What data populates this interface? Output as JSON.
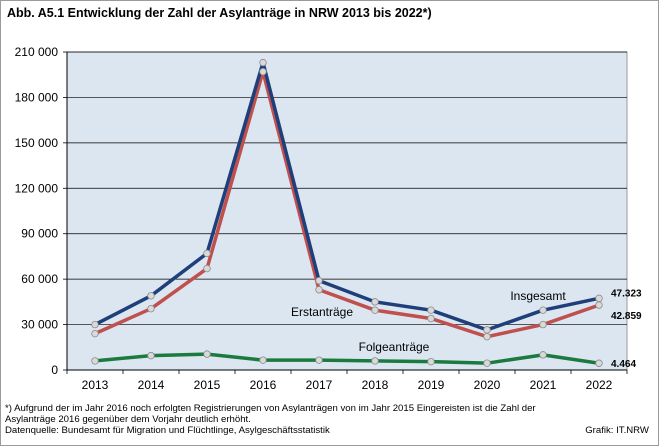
{
  "title": "Abb. A5.1  Entwicklung der Zahl der Asylanträge in NRW 2013 bis 2022*)",
  "footnotes": {
    "line1": "*) Aufgrund der im Jahr 2016 noch erfolgten Registrierungen  von Asylanträgen von im Jahr 2015 Eingereisten  ist die Zahl der",
    "line2": "Asylanträge 2016 gegenüber  dem Vorjahr deutlich erhöht.",
    "source": "Datenquelle:  Bundesamt  für Migration  und Flüchtlinge,  Asylgeschäftsstatistik",
    "credit": "Grafik:  IT.NRW"
  },
  "colors": {
    "insgesamt": "#1f3f7a",
    "erstantraege": "#c0504d",
    "folgeantraege": "#1b7a3e",
    "plot_background": "#dce6f1",
    "marker_fill": "#d9d9d9"
  },
  "chart_data": {
    "type": "line",
    "x": [
      "2013",
      "2014",
      "2015",
      "2016",
      "2017",
      "2018",
      "2019",
      "2020",
      "2021",
      "2022"
    ],
    "ylim": [
      0,
      210000
    ],
    "yticks": [
      0,
      30000,
      60000,
      90000,
      120000,
      150000,
      180000,
      210000
    ],
    "ytick_labels": [
      "0",
      "30 000",
      "60 000",
      "90 000",
      "120 000",
      "150 000",
      "180 000",
      "210 000"
    ],
    "grid": true,
    "series": [
      {
        "name": "Insgesamt",
        "color_key": "insgesamt",
        "values": [
          30000,
          49000,
          77000,
          203000,
          59000,
          45000,
          39500,
          26500,
          39500,
          47323
        ],
        "end_label": "47.323"
      },
      {
        "name": "Erstanträge",
        "color_key": "erstantraege",
        "values": [
          24000,
          40500,
          67000,
          197000,
          53000,
          39500,
          34000,
          22000,
          30000,
          42859
        ],
        "end_label": "42.859"
      },
      {
        "name": "Folgeanträge",
        "color_key": "folgeantraege",
        "values": [
          6000,
          9500,
          10500,
          6500,
          6500,
          6000,
          5500,
          4500,
          10000,
          4464
        ],
        "end_label": "4.464"
      }
    ]
  }
}
